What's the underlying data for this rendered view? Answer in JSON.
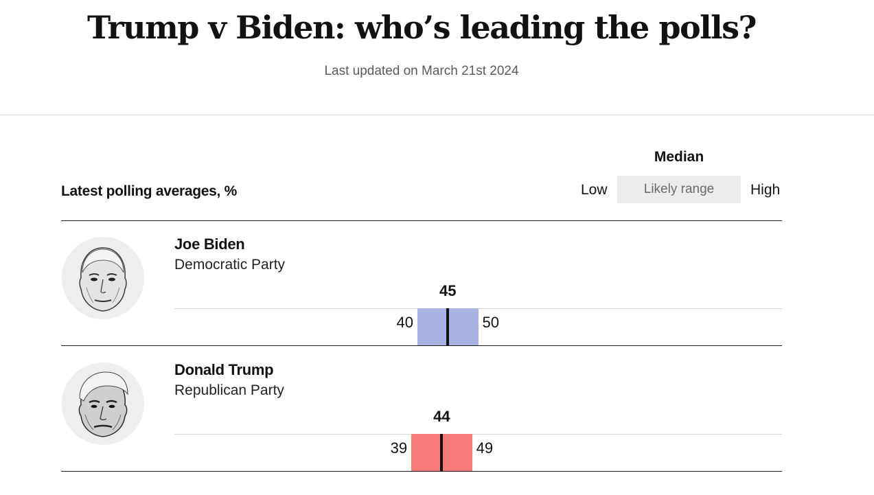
{
  "header": {
    "title": "Trump v Biden: who’s leading the polls?",
    "updated": "Last updated on March 21st 2024"
  },
  "legend": {
    "median": "Median",
    "low": "Low",
    "range": "Likely range",
    "high": "High"
  },
  "chart_data": {
    "type": "range",
    "title": "Latest polling averages, %",
    "xlim": [
      0,
      100
    ],
    "series": [
      {
        "name": "Joe Biden",
        "party": "Democratic Party",
        "median": 45,
        "low": 40,
        "high": 50,
        "color": "#aab4e4"
      },
      {
        "name": "Donald Trump",
        "party": "Republican Party",
        "median": 44,
        "low": 39,
        "high": 49,
        "color": "#f67a78"
      }
    ]
  }
}
